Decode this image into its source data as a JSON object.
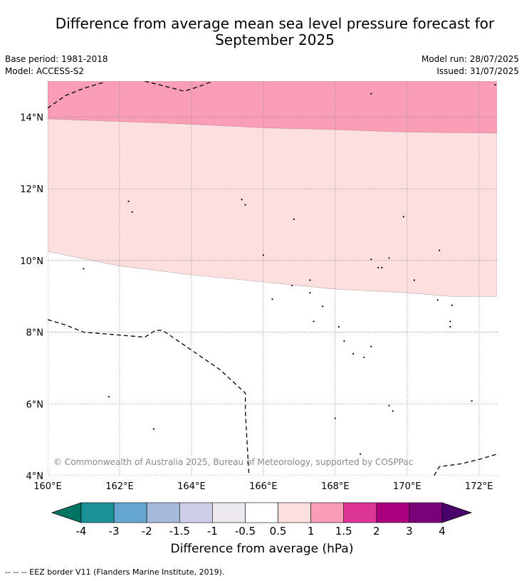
{
  "title_line1": "Difference from average mean sea level pressure forecast for",
  "title_line2": "September 2025",
  "base_period": "Base period: 1981-2018",
  "model": "Model: ACCESS-S2",
  "model_run": "Model run: 28/07/2025",
  "issued": "Issued: 31/07/2025",
  "copyright": "© Commonwealth of Australia 2025, Bureau of Meteorology, supported by COSPPac",
  "map": {
    "lon_range": [
      160,
      172.5
    ],
    "lat_range": [
      4,
      15
    ],
    "lon_ticks": [
      {
        "value": 160,
        "label": "160°E"
      },
      {
        "value": 162,
        "label": "162°E"
      },
      {
        "value": 164,
        "label": "164°E"
      },
      {
        "value": 166,
        "label": "166°E"
      },
      {
        "value": 168,
        "label": "168°E"
      },
      {
        "value": 170,
        "label": "170°E"
      },
      {
        "value": 172,
        "label": "172°E"
      }
    ],
    "lat_ticks": [
      {
        "value": 4,
        "label": "4°N"
      },
      {
        "value": 6,
        "label": "6°N"
      },
      {
        "value": 8,
        "label": "8°N"
      },
      {
        "value": 10,
        "label": "10°N"
      },
      {
        "value": 12,
        "label": "12°N"
      },
      {
        "value": 14,
        "label": "14°N"
      }
    ],
    "band_1_to_1_5_lower_edge": [
      [
        160,
        13.95
      ],
      [
        164,
        13.8
      ],
      [
        166,
        13.7
      ],
      [
        168,
        13.65
      ],
      [
        170,
        13.58
      ],
      [
        172.5,
        13.55
      ]
    ],
    "band_0_5_to_1_lower_edge": [
      [
        160,
        10.25
      ],
      [
        162,
        9.85
      ],
      [
        164,
        9.6
      ],
      [
        166,
        9.4
      ],
      [
        168,
        9.2
      ],
      [
        170,
        9.1
      ],
      [
        171.2,
        9.0
      ],
      [
        172.5,
        9.0
      ]
    ],
    "eez_borders": [
      [
        [
          160,
          14.25
        ],
        [
          160.5,
          14.6
        ],
        [
          161,
          14.8
        ],
        [
          161.6,
          14.98
        ]
      ],
      [
        [
          162.7,
          15.0
        ],
        [
          163.3,
          14.85
        ],
        [
          163.8,
          14.72
        ],
        [
          164.2,
          14.85
        ],
        [
          164.6,
          15.0
        ]
      ],
      [
        [
          160,
          8.35
        ],
        [
          160.5,
          8.2
        ],
        [
          161,
          8.0
        ],
        [
          162,
          7.92
        ],
        [
          162.7,
          7.86
        ],
        [
          163,
          8.05
        ],
        [
          163.2,
          8.05
        ],
        [
          164,
          7.5
        ],
        [
          164.8,
          6.95
        ],
        [
          165.5,
          6.3
        ],
        [
          165.5,
          5.8
        ],
        [
          165.6,
          4.0
        ]
      ],
      [
        [
          170.75,
          4.0
        ],
        [
          170.9,
          4.25
        ],
        [
          171.5,
          4.33
        ],
        [
          172,
          4.45
        ],
        [
          172.5,
          4.6
        ]
      ]
    ],
    "islands": [
      [
        161.0,
        9.77
      ],
      [
        162.25,
        11.65
      ],
      [
        162.35,
        11.35
      ],
      [
        165.4,
        11.7
      ],
      [
        165.5,
        11.55
      ],
      [
        166.0,
        10.15
      ],
      [
        166.85,
        11.15
      ],
      [
        166.25,
        8.92
      ],
      [
        166.8,
        9.3
      ],
      [
        167.3,
        9.45
      ],
      [
        167.3,
        9.1
      ],
      [
        167.65,
        8.72
      ],
      [
        167.4,
        8.3
      ],
      [
        168.1,
        8.15
      ],
      [
        168.25,
        7.75
      ],
      [
        168.5,
        7.4
      ],
      [
        168.8,
        7.3
      ],
      [
        169.0,
        7.6
      ],
      [
        169.5,
        5.95
      ],
      [
        169.6,
        5.8
      ],
      [
        169.0,
        10.03
      ],
      [
        169.2,
        9.8
      ],
      [
        169.3,
        9.8
      ],
      [
        169.5,
        10.07
      ],
      [
        169.9,
        11.22
      ],
      [
        170.2,
        9.45
      ],
      [
        170.9,
        10.28
      ],
      [
        170.85,
        8.9
      ],
      [
        171.25,
        8.75
      ],
      [
        171.2,
        8.3
      ],
      [
        171.2,
        8.15
      ],
      [
        171.8,
        6.08
      ],
      [
        162.95,
        5.3
      ],
      [
        168.0,
        5.6
      ],
      [
        169.0,
        14.65
      ],
      [
        161.7,
        6.2
      ],
      [
        168.7,
        4.6
      ],
      [
        172.45,
        14.9
      ]
    ]
  },
  "colorbar": {
    "title": "Difference from average (hPa)",
    "labels": [
      "-4",
      "-3",
      "-2",
      "-1.5",
      "-1",
      "-0.5",
      "0.5",
      "1",
      "1.5",
      "2",
      "3",
      "4"
    ],
    "colors": [
      "#1a9297",
      "#66a7d2",
      "#a6b9db",
      "#cdcfe6",
      "#ebe9ef",
      "#ffffff",
      "#fedfe0",
      "#fa9eb7",
      "#dc3596",
      "#ac017e",
      "#7b0179"
    ],
    "under_color": "#017362",
    "over_color": "#4a006a"
  },
  "footer": "--  --  -- EEZ border V11 (Flanders Marine Institute, 2019)."
}
